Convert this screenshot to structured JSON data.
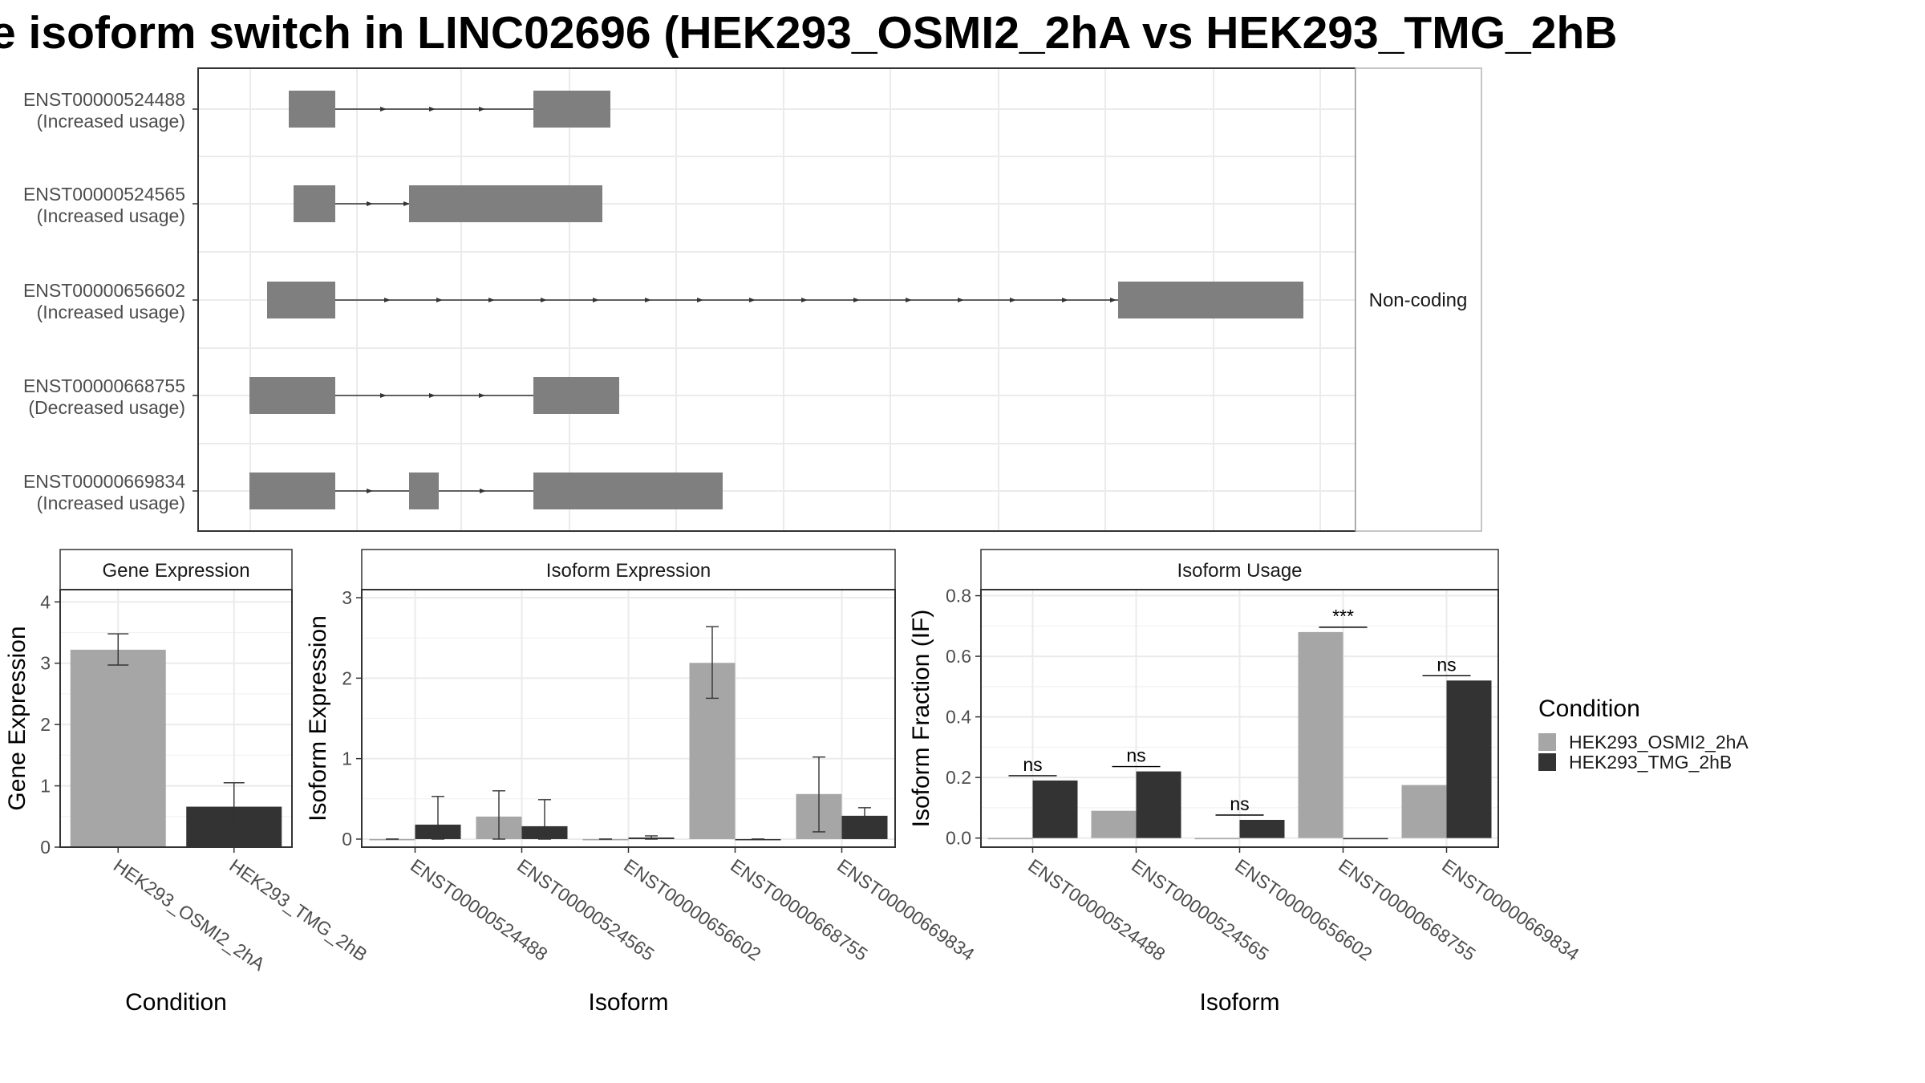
{
  "chart_data": [
    {
      "type": "transcript-structure",
      "title": "e isoform switch in LINC02696 (HEK293_OSMI2_2hA vs HEK293_TMG_2hB",
      "facet_label": "Non-coding",
      "transcripts": [
        {
          "id": "ENST00000524488",
          "usage": "(Increased usage)"
        },
        {
          "id": "ENST00000524565",
          "usage": "(Increased usage)"
        },
        {
          "id": "ENST00000656602",
          "usage": "(Increased usage)"
        },
        {
          "id": "ENST00000668755",
          "usage": "(Decreased usage)"
        },
        {
          "id": "ENST00000669834",
          "usage": "(Increased usage)"
        }
      ]
    },
    {
      "type": "bar",
      "panel_title": "Gene Expression",
      "xlabel": "Condition",
      "ylabel": "Gene Expression",
      "ylim": [
        0,
        4.2
      ],
      "yticks": [
        "0",
        "1",
        "2",
        "3",
        "4"
      ],
      "categories": [
        "HEK293_OSMI2_2hA",
        "HEK293_TMG_2hB"
      ],
      "values": [
        3.22,
        0.66
      ],
      "error_low": [
        2.97,
        0.28
      ],
      "error_high": [
        3.48,
        1.05
      ]
    },
    {
      "type": "bar",
      "panel_title": "Isoform Expression",
      "xlabel": "Isoform",
      "ylabel": "Isoform Expression",
      "ylim": [
        -0.1,
        3.1
      ],
      "yticks": [
        "0",
        "1",
        "2",
        "3"
      ],
      "categories": [
        "ENST00000524488",
        "ENST00000524565",
        "ENST00000656602",
        "ENST00000668755",
        "ENST00000669834"
      ],
      "series": [
        {
          "name": "HEK293_OSMI2_2hA",
          "values": [
            0.0,
            0.28,
            0.0,
            2.19,
            0.56
          ],
          "error_low": [
            0.0,
            0.0,
            0.0,
            1.75,
            0.09
          ],
          "error_high": [
            0.0,
            0.6,
            0.0,
            2.64,
            1.02
          ]
        },
        {
          "name": "HEK293_TMG_2hB",
          "values": [
            0.18,
            0.16,
            0.02,
            0.0,
            0.29
          ],
          "error_low": [
            0.0,
            0.0,
            0.0,
            0.0,
            0.19
          ],
          "error_high": [
            0.53,
            0.49,
            0.04,
            0.0,
            0.39
          ]
        }
      ]
    },
    {
      "type": "bar",
      "panel_title": "Isoform Usage",
      "xlabel": "Isoform",
      "ylabel": "Isoform Fraction (IF)",
      "ylim": [
        -0.03,
        0.82
      ],
      "yticks": [
        "0.0",
        "0.2",
        "0.4",
        "0.6",
        "0.8"
      ],
      "categories": [
        "ENST00000524488",
        "ENST00000524565",
        "ENST00000656602",
        "ENST00000668755",
        "ENST00000669834"
      ],
      "series": [
        {
          "name": "HEK293_OSMI2_2hA",
          "values": [
            0.0,
            0.09,
            0.0,
            0.68,
            0.175
          ]
        },
        {
          "name": "HEK293_TMG_2hB",
          "values": [
            0.19,
            0.22,
            0.06,
            0.0,
            0.52
          ]
        }
      ],
      "significance": [
        "ns",
        "ns",
        "ns",
        "***",
        "ns"
      ]
    }
  ],
  "legend": {
    "title": "Condition",
    "items": [
      {
        "label": "HEK293_OSMI2_2hA",
        "color": "#a6a6a6"
      },
      {
        "label": "HEK293_TMG_2hB",
        "color": "#333333"
      }
    ]
  },
  "colors": {
    "structure": "#7f7f7f",
    "cond_a": "#a6a6a6",
    "cond_b": "#333333"
  }
}
